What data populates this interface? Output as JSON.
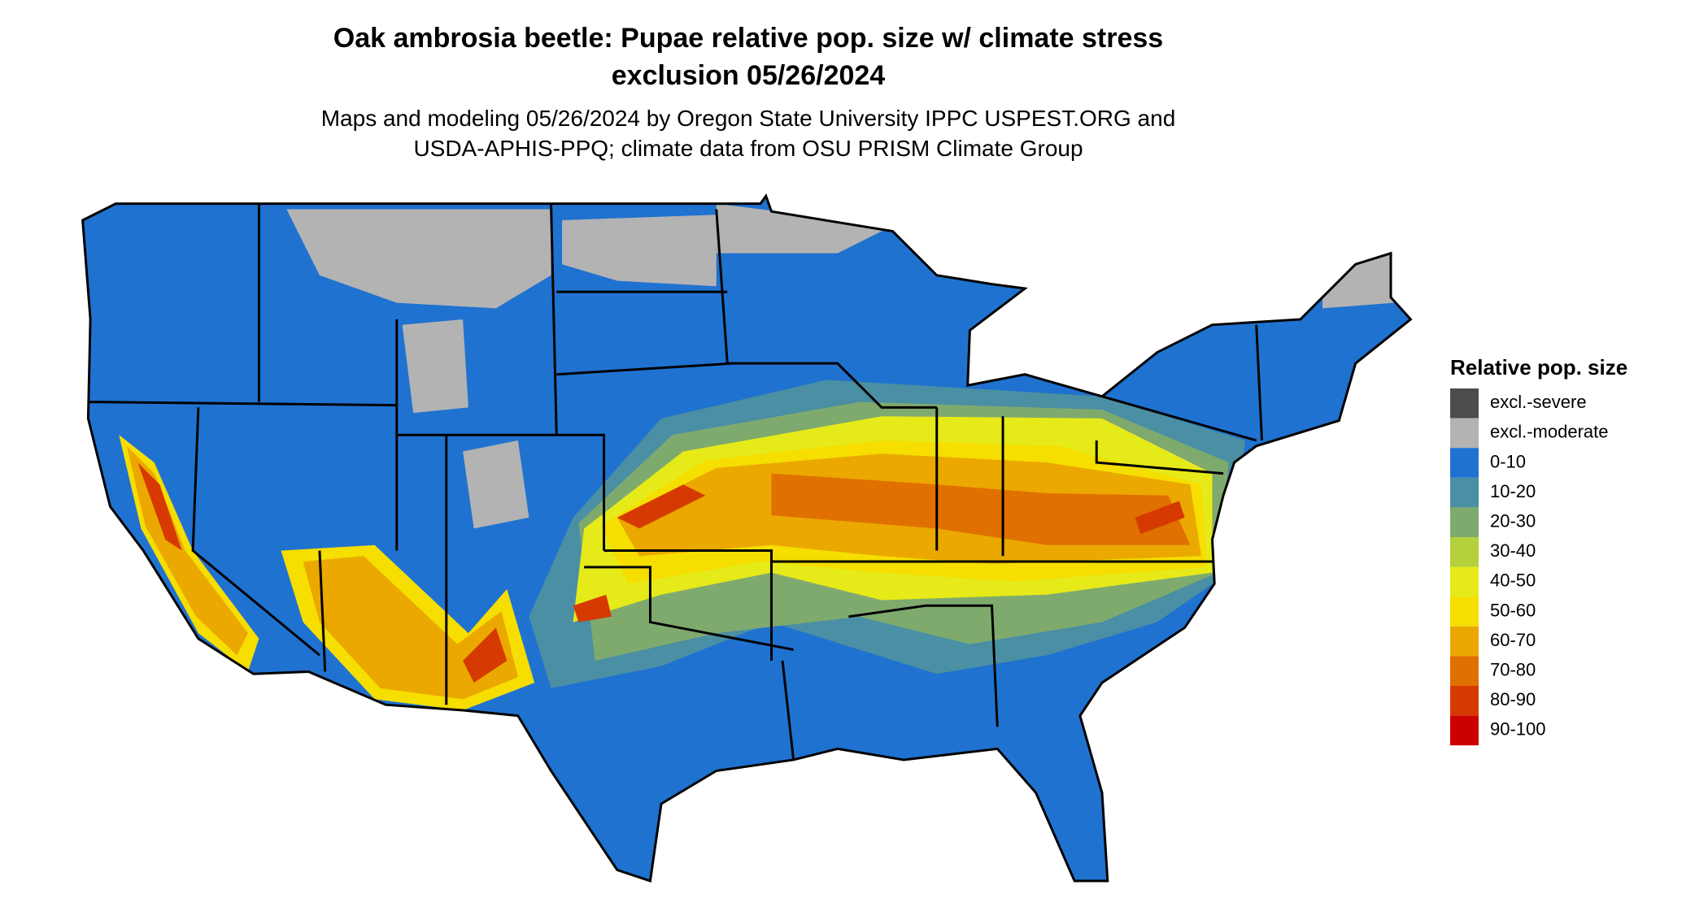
{
  "title": [
    "Oak ambrosia beetle: Pupae relative pop. size w/ climate stress",
    "exclusion 05/26/2024"
  ],
  "subtitle": [
    "Maps and modeling 05/26/2024 by Oregon State University IPPC USPEST.ORG and",
    "USDA-APHIS-PPQ; climate data from OSU PRISM Climate Group"
  ],
  "legend": {
    "title": "Relative pop. size",
    "items": [
      {
        "label": "excl.-severe",
        "color": "#4d4d4d"
      },
      {
        "label": "excl.-moderate",
        "color": "#b3b3b3"
      },
      {
        "label": "0-10",
        "color": "#1f72d0"
      },
      {
        "label": "10-20",
        "color": "#4a8fa3"
      },
      {
        "label": "20-30",
        "color": "#7faa6e"
      },
      {
        "label": "30-40",
        "color": "#b4d03c"
      },
      {
        "label": "40-50",
        "color": "#e6ea18"
      },
      {
        "label": "50-60",
        "color": "#f5de00"
      },
      {
        "label": "60-70",
        "color": "#eba800"
      },
      {
        "label": "70-80",
        "color": "#e07000"
      },
      {
        "label": "80-90",
        "color": "#d63a00"
      },
      {
        "label": "90-100",
        "color": "#cc0000"
      }
    ]
  }
}
